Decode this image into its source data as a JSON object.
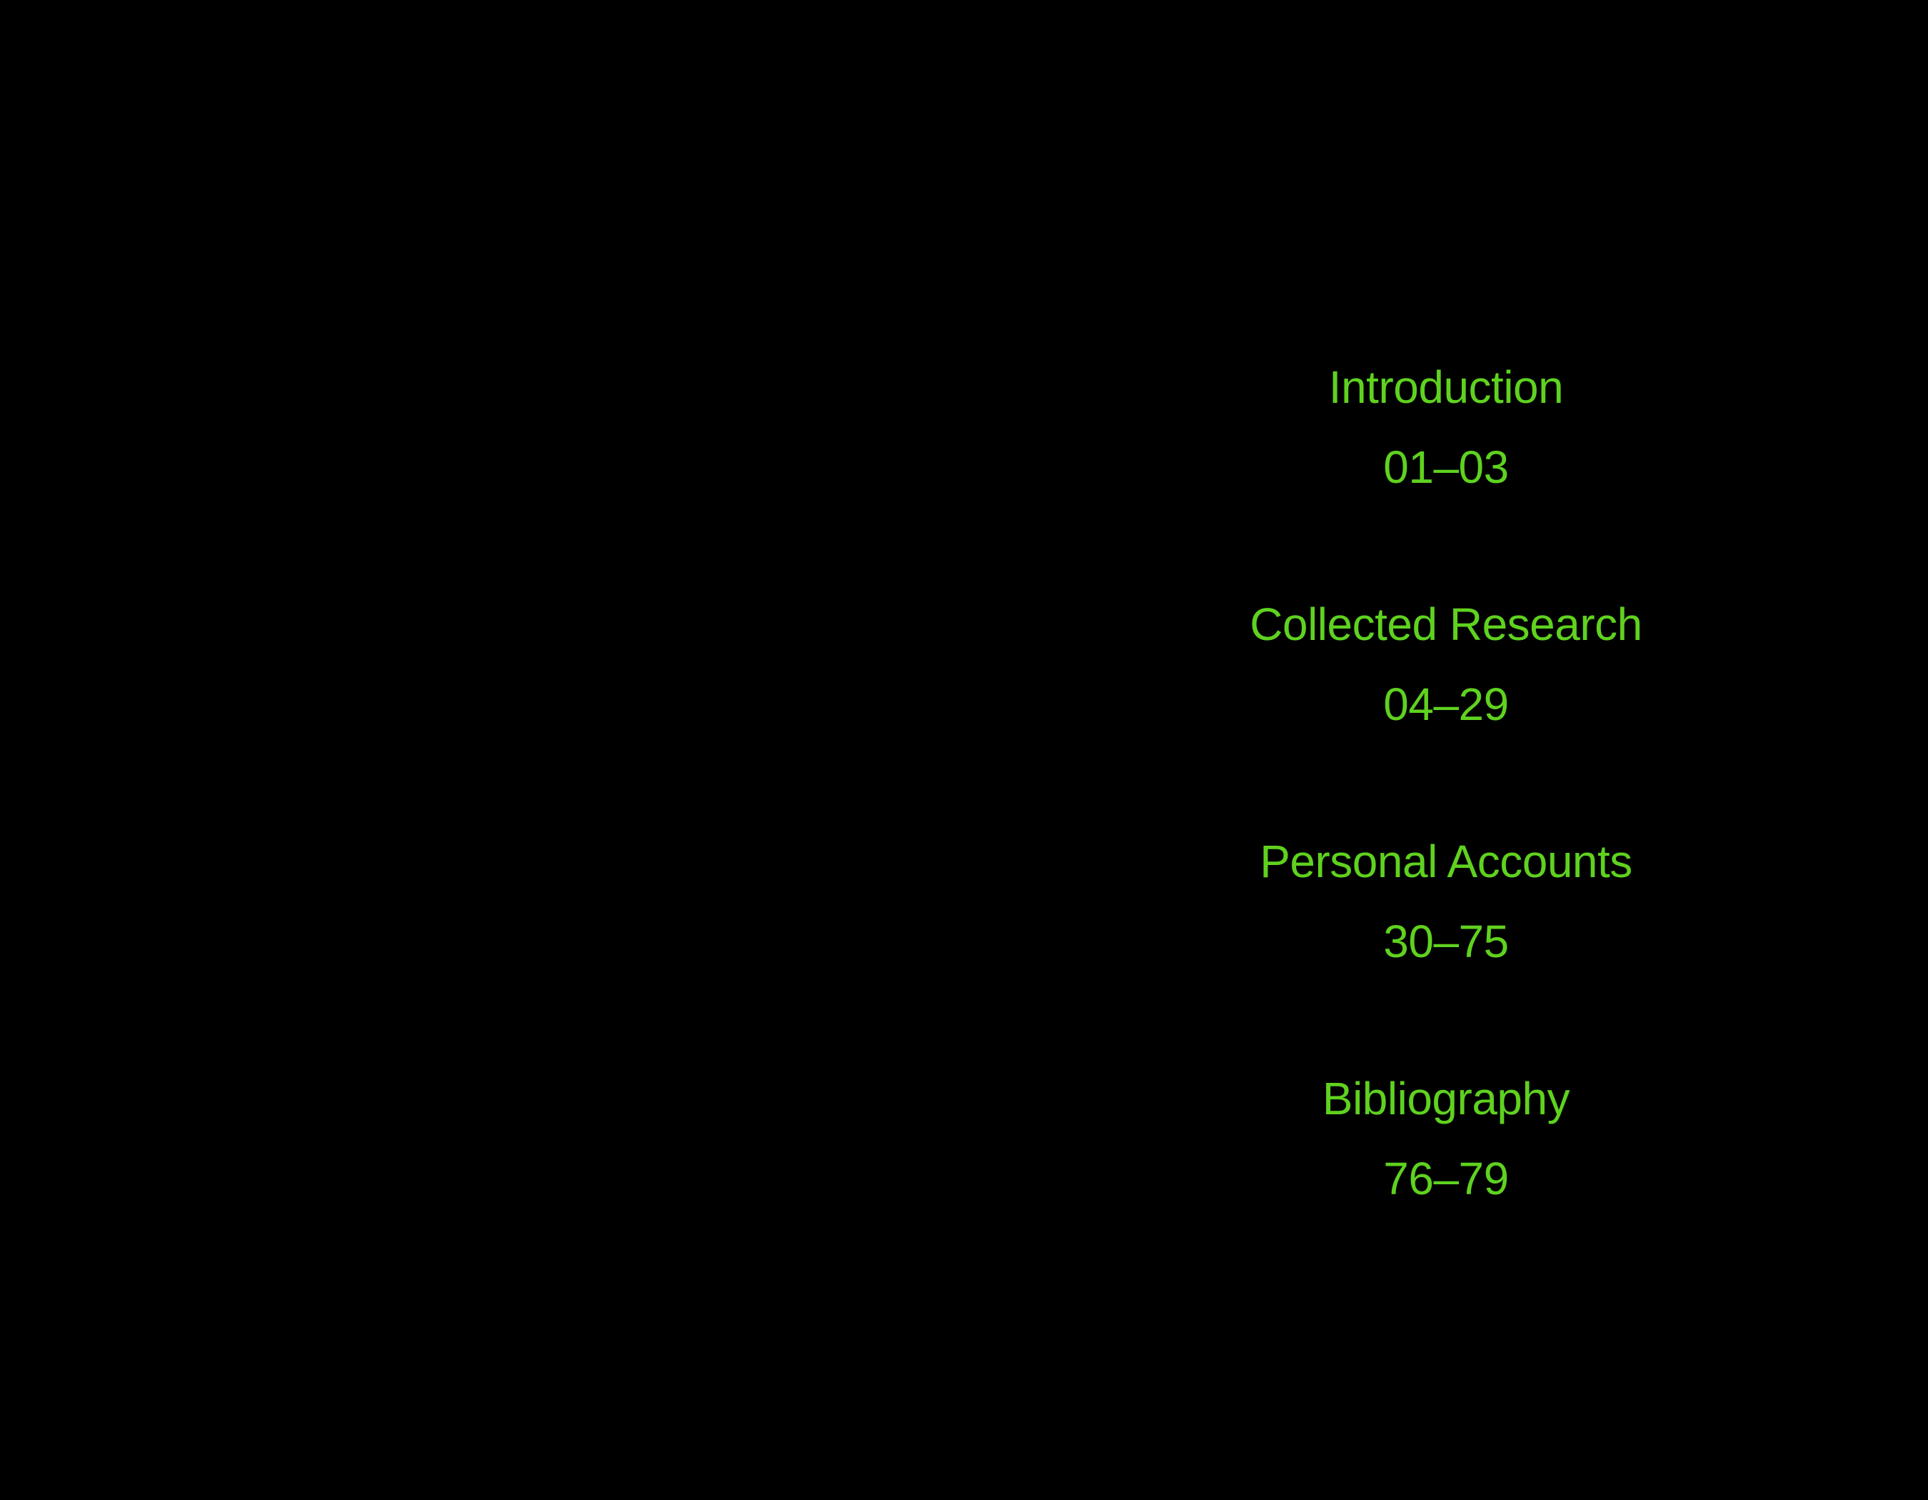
{
  "toc": {
    "entries": [
      {
        "title": "Introduction",
        "pages": "01–03"
      },
      {
        "title": "Collected Research",
        "pages": "04–29"
      },
      {
        "title": "Personal Accounts",
        "pages": "30–75"
      },
      {
        "title": "Bibliography",
        "pages": "76–79"
      }
    ]
  },
  "colors": {
    "background": "#000000",
    "text": "#5fd21f"
  }
}
